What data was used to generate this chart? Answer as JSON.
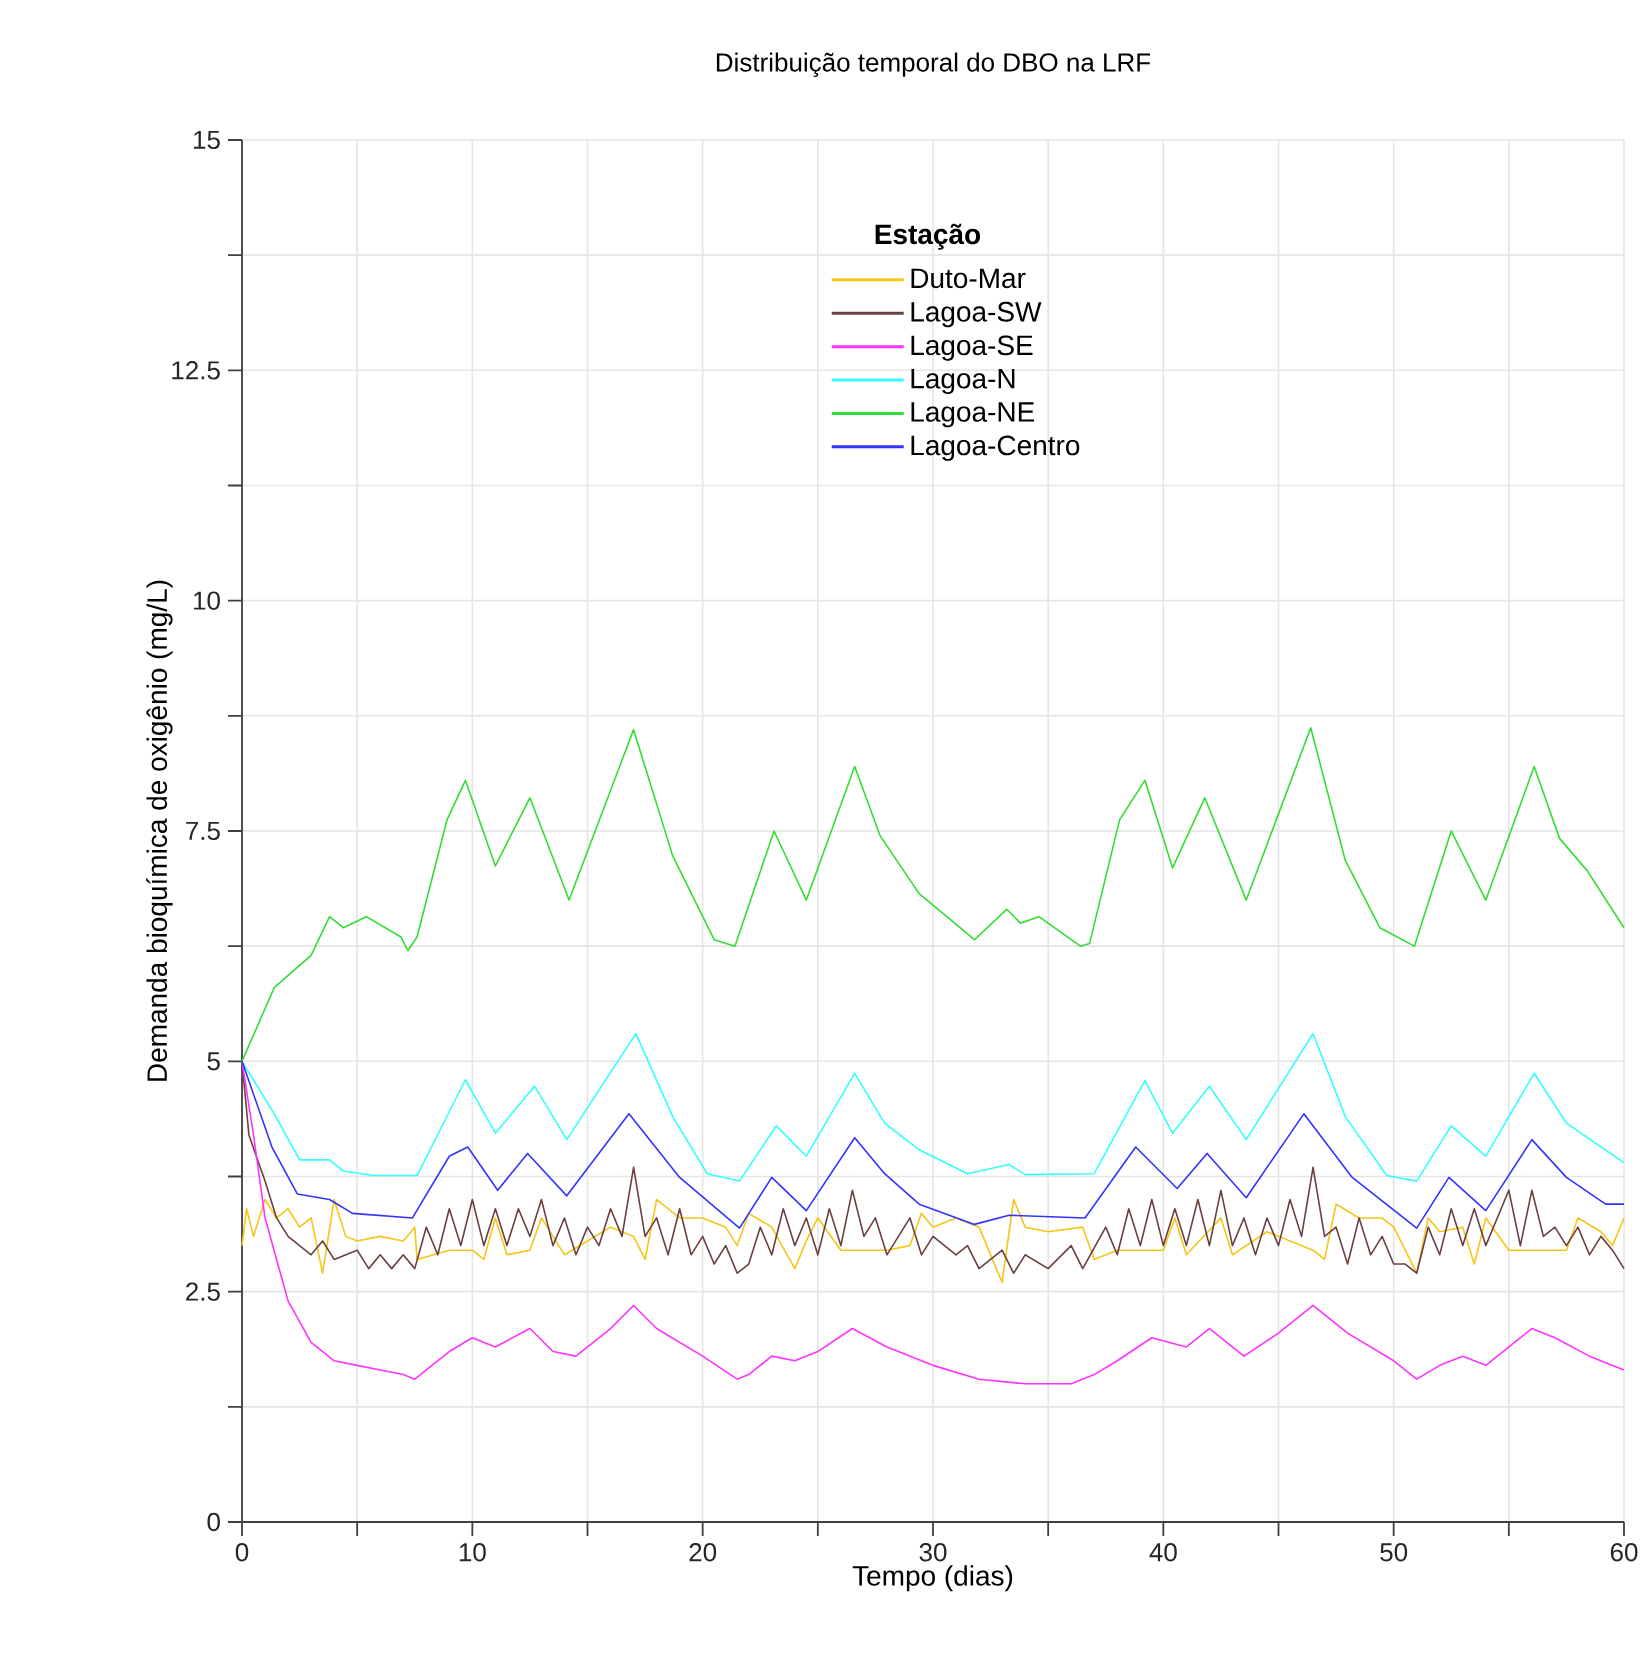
{
  "chart_data": {
    "type": "line",
    "title": "Distribuição temporal do DBO na LRF",
    "xlabel": "Tempo (dias)",
    "ylabel": "Demanda bioquímica de oxigênio (mg/L)",
    "legend_title": "Estação",
    "legend": "top",
    "grid": true,
    "line_style": "solid",
    "xlim": [
      0,
      60
    ],
    "ylim": [
      0,
      15
    ],
    "xticks": [
      0,
      {
        "value": 5,
        "label": null
      },
      10,
      {
        "value": 15,
        "label": null
      },
      20,
      {
        "value": 25,
        "label": null
      },
      30,
      {
        "value": 35,
        "label": null
      },
      40,
      {
        "value": 45,
        "label": null
      },
      50,
      {
        "value": 55,
        "label": null
      },
      60
    ],
    "yticks": [
      0,
      {
        "value": 1.25,
        "label": null
      },
      2.5,
      {
        "value": 3.75,
        "label": null
      },
      5,
      {
        "value": 6.25,
        "label": null
      },
      7.5,
      {
        "value": 8.75,
        "label": null
      },
      10,
      {
        "value": 11.25,
        "label": null
      },
      12.5,
      {
        "value": 13.75,
        "label": null
      },
      15
    ],
    "series": [
      {
        "name": "Duto-Mar",
        "color": "#f5c518",
        "x": [
          0,
          0.2,
          0.5,
          1,
          1.5,
          2,
          2.5,
          3,
          3.5,
          4,
          4.5,
          5,
          6,
          7,
          7.5,
          7.6,
          9,
          10,
          10.5,
          11,
          11.5,
          12.5,
          13,
          14,
          15,
          16,
          17,
          17.5,
          18,
          19,
          20,
          21,
          21.5,
          22,
          23,
          24,
          24.5,
          25,
          26,
          28,
          29,
          29.5,
          30,
          31,
          32,
          33,
          33.5,
          34,
          35,
          36.5,
          37,
          38,
          40,
          40.5,
          41,
          42.5,
          43,
          44.5,
          45,
          46.5,
          47,
          47.5,
          48.5,
          49.5,
          50,
          51,
          51.5,
          52,
          53,
          53.5,
          54,
          55,
          57.5,
          58,
          59,
          59.5,
          60
        ],
        "values": [
          3.0,
          3.4,
          3.1,
          3.5,
          3.3,
          3.4,
          3.2,
          3.3,
          2.7,
          3.5,
          3.1,
          3.05,
          3.1,
          3.05,
          3.2,
          2.85,
          2.95,
          2.95,
          2.85,
          3.3,
          2.9,
          2.95,
          3.3,
          2.9,
          3.05,
          3.2,
          3.1,
          2.85,
          3.5,
          3.3,
          3.3,
          3.2,
          3.0,
          3.35,
          3.2,
          2.75,
          3.05,
          3.3,
          2.95,
          2.95,
          3.0,
          3.35,
          3.2,
          3.3,
          3.2,
          2.6,
          3.5,
          3.2,
          3.15,
          3.2,
          2.85,
          2.95,
          2.95,
          3.3,
          2.9,
          3.3,
          2.9,
          3.15,
          3.1,
          2.95,
          2.85,
          3.45,
          3.3,
          3.3,
          3.2,
          2.7,
          3.3,
          3.15,
          3.2,
          2.8,
          3.3,
          2.95,
          2.95,
          3.3,
          3.15,
          3.0,
          3.3
        ]
      },
      {
        "name": "Lagoa-SW",
        "color": "#6b4040",
        "x": [
          0,
          0.3,
          1,
          1.5,
          2,
          3,
          3.5,
          4,
          5,
          5.5,
          6,
          6.5,
          7,
          7.5,
          8,
          8.5,
          9,
          9.5,
          10,
          10.5,
          11,
          11.5,
          12,
          12.5,
          13,
          13.5,
          14,
          14.5,
          15,
          15.5,
          16,
          16.5,
          17,
          17.5,
          18,
          18.5,
          19,
          19.5,
          20,
          20.5,
          21,
          21.5,
          22,
          22.5,
          23,
          23.5,
          24,
          24.5,
          25,
          25.5,
          26,
          26.5,
          27,
          27.5,
          28,
          29,
          29.5,
          30,
          31,
          31.5,
          32,
          33,
          33.5,
          34,
          35,
          36,
          36.5,
          37.5,
          38,
          38.5,
          39,
          39.5,
          40,
          40.5,
          41,
          41.5,
          42,
          42.5,
          43,
          43.5,
          44,
          44.5,
          45,
          45.5,
          46,
          46.5,
          47,
          47.5,
          48,
          48.5,
          49,
          49.5,
          50,
          50.5,
          51,
          51.5,
          52,
          52.5,
          53,
          53.5,
          54,
          55,
          55.5,
          56,
          56.5,
          57,
          57.5,
          58,
          58.5,
          59,
          59.5,
          60
        ],
        "values": [
          5.0,
          4.2,
          3.7,
          3.3,
          3.1,
          2.9,
          3.05,
          2.85,
          2.95,
          2.75,
          2.9,
          2.75,
          2.9,
          2.75,
          3.2,
          2.9,
          3.4,
          3.0,
          3.5,
          3.0,
          3.4,
          3.0,
          3.4,
          3.1,
          3.5,
          3.0,
          3.3,
          2.9,
          3.2,
          3.0,
          3.4,
          3.1,
          3.85,
          3.1,
          3.3,
          2.9,
          3.4,
          2.9,
          3.1,
          2.8,
          3.0,
          2.7,
          2.8,
          3.2,
          2.9,
          3.4,
          3.0,
          3.3,
          2.9,
          3.4,
          3.0,
          3.6,
          3.1,
          3.3,
          2.9,
          3.3,
          2.9,
          3.1,
          2.9,
          3.0,
          2.75,
          2.95,
          2.7,
          2.9,
          2.75,
          3.0,
          2.75,
          3.2,
          2.9,
          3.4,
          3.0,
          3.5,
          3.0,
          3.4,
          3.0,
          3.5,
          3.0,
          3.6,
          3.0,
          3.3,
          2.9,
          3.3,
          3.0,
          3.5,
          3.1,
          3.85,
          3.1,
          3.2,
          2.8,
          3.3,
          2.9,
          3.1,
          2.8,
          2.8,
          2.7,
          3.2,
          2.9,
          3.4,
          3.0,
          3.4,
          3.0,
          3.6,
          3.0,
          3.6,
          3.1,
          3.2,
          3.0,
          3.2,
          2.9,
          3.1,
          2.95,
          2.75
        ]
      },
      {
        "name": "Lagoa-SE",
        "color": "#ff33ff",
        "x": [
          0,
          0.5,
          1,
          2,
          3,
          4,
          5,
          6,
          7,
          7.5,
          8,
          9,
          10,
          11,
          12.5,
          13.5,
          14.5,
          16,
          17,
          18,
          20,
          21.5,
          22,
          23,
          24,
          25,
          26.5,
          28,
          30,
          32,
          34,
          36,
          37,
          38,
          39.5,
          41,
          42,
          43.5,
          45,
          46.5,
          48,
          50,
          51,
          52,
          53,
          54,
          56,
          57,
          58.5,
          60
        ],
        "values": [
          5.0,
          4.2,
          3.3,
          2.4,
          1.95,
          1.75,
          1.7,
          1.65,
          1.6,
          1.55,
          1.65,
          1.85,
          2.0,
          1.9,
          2.1,
          1.85,
          1.8,
          2.1,
          2.35,
          2.1,
          1.8,
          1.55,
          1.6,
          1.8,
          1.75,
          1.85,
          2.1,
          1.9,
          1.7,
          1.55,
          1.5,
          1.5,
          1.6,
          1.75,
          2.0,
          1.9,
          2.1,
          1.8,
          2.05,
          2.35,
          2.05,
          1.75,
          1.55,
          1.7,
          1.8,
          1.7,
          2.1,
          2.0,
          1.8,
          1.65
        ]
      },
      {
        "name": "Lagoa-N",
        "color": "#33ffff",
        "x": [
          0,
          1.4,
          2.5,
          3.8,
          4.4,
          5.7,
          7.6,
          9.7,
          11.0,
          12.7,
          14.1,
          17.1,
          18.7,
          20.2,
          21.6,
          23.2,
          24.5,
          26.6,
          27.9,
          29.4,
          31.5,
          33.3,
          34.0,
          37.0,
          39.2,
          40.4,
          42.0,
          43.6,
          46.5,
          47.9,
          49.7,
          51.0,
          52.5,
          54.0,
          56.1,
          57.5,
          60
        ],
        "values": [
          5.0,
          4.43,
          3.93,
          3.93,
          3.81,
          3.76,
          3.76,
          4.8,
          4.22,
          4.73,
          4.15,
          5.3,
          4.4,
          3.78,
          3.7,
          4.3,
          3.97,
          4.87,
          4.33,
          4.04,
          3.78,
          3.88,
          3.77,
          3.78,
          4.79,
          4.22,
          4.73,
          4.15,
          5.3,
          4.4,
          3.76,
          3.7,
          4.3,
          3.97,
          4.87,
          4.33,
          3.9
        ]
      },
      {
        "name": "Lagoa-NE",
        "color": "#33dd33",
        "x": [
          0,
          1.4,
          3.0,
          3.8,
          4.4,
          5.4,
          6.9,
          7.2,
          7.6,
          8.9,
          9.7,
          11.0,
          12.5,
          14.2,
          17.0,
          18.7,
          20.5,
          21.4,
          23.1,
          24.5,
          26.6,
          27.7,
          29.4,
          31.8,
          33.2,
          33.8,
          34.6,
          36.4,
          36.8,
          38.1,
          39.2,
          40.4,
          41.8,
          43.6,
          46.4,
          47.9,
          49.4,
          50.9,
          52.5,
          54.0,
          56.1,
          57.2,
          58.4,
          60
        ],
        "values": [
          5.0,
          5.8,
          6.15,
          6.57,
          6.45,
          6.57,
          6.35,
          6.2,
          6.35,
          7.62,
          8.05,
          7.12,
          7.86,
          6.75,
          8.6,
          7.23,
          6.32,
          6.25,
          7.5,
          6.75,
          8.2,
          7.45,
          6.82,
          6.32,
          6.65,
          6.5,
          6.57,
          6.25,
          6.28,
          7.62,
          8.05,
          7.1,
          7.86,
          6.75,
          8.62,
          7.18,
          6.45,
          6.25,
          7.5,
          6.75,
          8.2,
          7.42,
          7.07,
          6.45
        ]
      },
      {
        "name": "Lagoa-Centro",
        "color": "#3333ff",
        "x": [
          0,
          1.3,
          2.4,
          3.8,
          4.8,
          7.4,
          9.0,
          9.8,
          11.1,
          12.4,
          14.1,
          16.8,
          19.0,
          21.6,
          23.0,
          24.5,
          26.6,
          27.9,
          29.4,
          31.8,
          33.3,
          36.6,
          38.8,
          40.6,
          41.9,
          43.6,
          46.1,
          48.2,
          51.0,
          52.4,
          54.0,
          56.0,
          57.5,
          59.2,
          60
        ],
        "values": [
          5.0,
          4.07,
          3.56,
          3.5,
          3.35,
          3.3,
          3.97,
          4.07,
          3.6,
          4.0,
          3.54,
          4.43,
          3.74,
          3.19,
          3.74,
          3.38,
          4.17,
          3.78,
          3.45,
          3.23,
          3.33,
          3.3,
          4.07,
          3.62,
          4.0,
          3.52,
          4.43,
          3.74,
          3.19,
          3.74,
          3.38,
          4.15,
          3.74,
          3.45,
          3.45
        ]
      }
    ]
  }
}
